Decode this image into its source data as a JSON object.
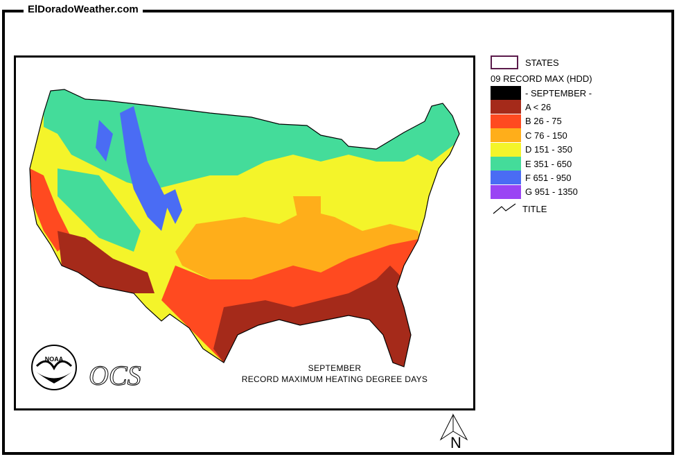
{
  "site": {
    "title": "ElDoradoWeather.com"
  },
  "map": {
    "caption_line1": "SEPTEMBER",
    "caption_line2": "RECORD MAXIMUM HEATING DEGREE DAYS",
    "logo_text": "NOAA",
    "ocs_text": "OCS",
    "north_label": "N"
  },
  "legend": {
    "states_label": "STATES",
    "layer_title": "09 RECORD MAX (HDD)",
    "title_symbol_label": "TITLE",
    "classes": [
      {
        "label": "- SEPTEMBER -",
        "color": "#000000"
      },
      {
        "label": "A < 26",
        "color": "#a52a1a"
      },
      {
        "label": "B 26 - 75",
        "color": "#ff4a20"
      },
      {
        "label": "C 76 - 150",
        "color": "#ffae1a"
      },
      {
        "label": "D 151 - 350",
        "color": "#f4f42a"
      },
      {
        "label": "E 351 - 650",
        "color": "#44dc9a"
      },
      {
        "label": "F 651 - 950",
        "color": "#4a6cf4"
      },
      {
        "label": "G 951 - 1350",
        "color": "#9a44f4"
      }
    ]
  }
}
